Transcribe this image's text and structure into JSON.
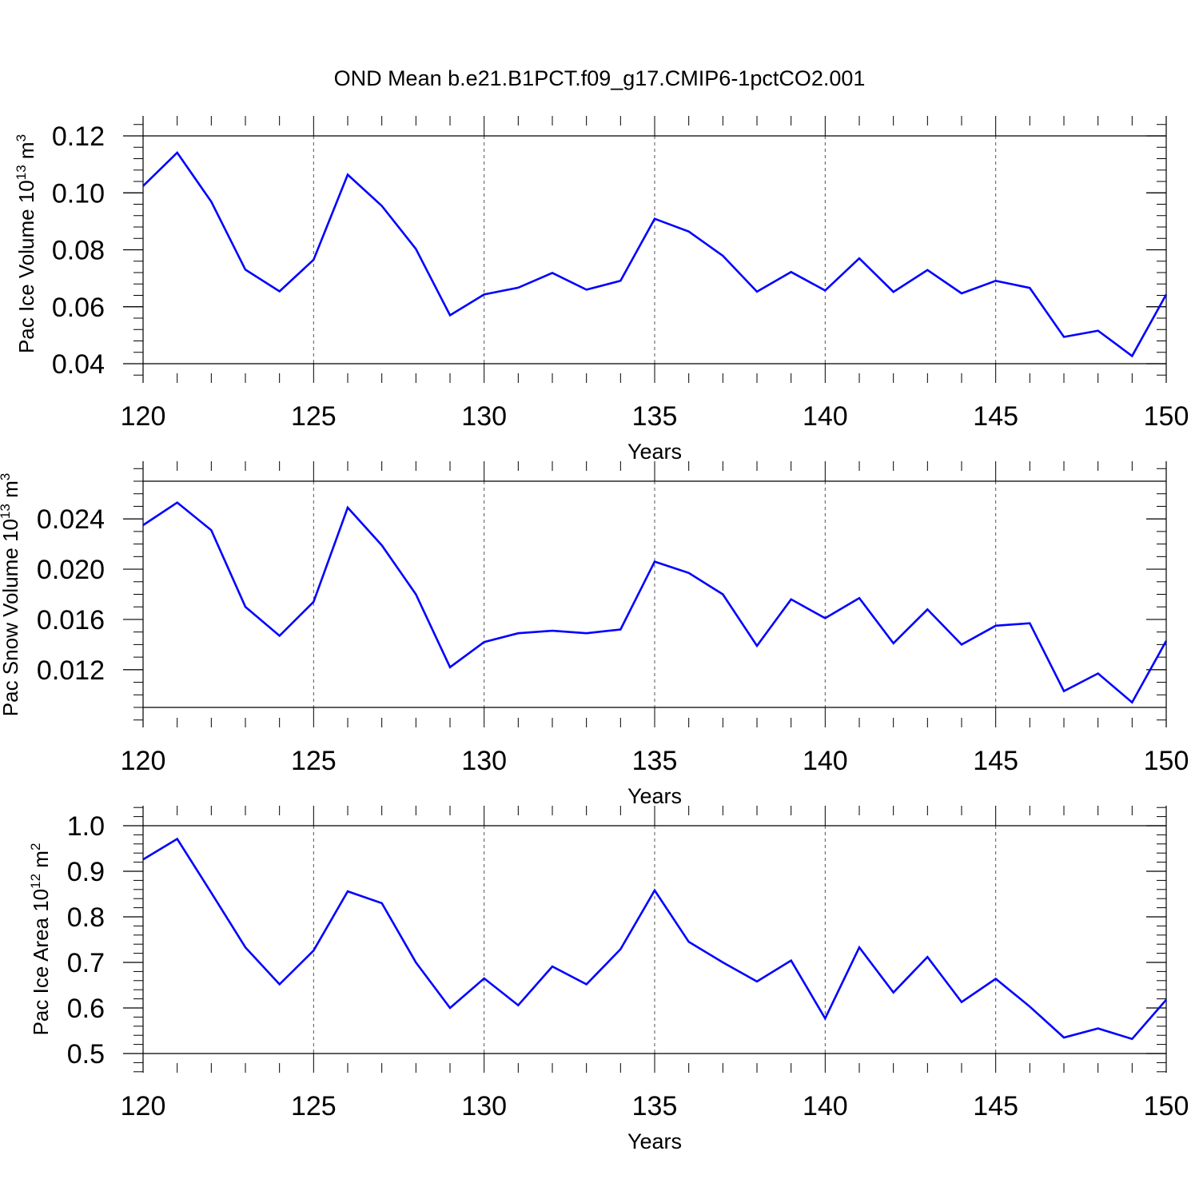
{
  "figure": {
    "title": "OND Mean b.e21.B1PCT.f09_g17.CMIP6-1pctCO2.001"
  },
  "chart_data": [
    {
      "type": "line",
      "title": "OND Mean b.e21.B1PCT.f09_g17.CMIP6-1pctCO2.001",
      "xlabel": "Years",
      "ylabel": {
        "base": "Pac Ice Volume 10",
        "exp": "13",
        "unit": " m",
        "unit_exp": "3"
      },
      "xlim": [
        120,
        150
      ],
      "ylim": [
        0.04,
        0.12
      ],
      "xticks": [
        120,
        125,
        130,
        135,
        140,
        145,
        150
      ],
      "xtick_labels": [
        "120",
        "125",
        "130",
        "135",
        "140",
        "145",
        "150"
      ],
      "yticks": [
        0.04,
        0.06,
        0.08,
        0.1,
        0.12
      ],
      "ytick_labels": [
        "0.04",
        "0.06",
        "0.08",
        "0.10",
        "0.12"
      ],
      "y_minor_step": 0.004,
      "grid": "vertical dashed at major x ticks",
      "color": "#0000ff",
      "x": [
        120,
        121,
        122,
        123,
        124,
        125,
        126,
        127,
        128,
        129,
        130,
        131,
        132,
        133,
        134,
        135,
        136,
        137,
        138,
        139,
        140,
        141,
        142,
        143,
        144,
        145,
        146,
        147,
        148,
        149,
        150
      ],
      "y": [
        0.1024,
        0.1141,
        0.0969,
        0.073,
        0.0654,
        0.0765,
        0.1064,
        0.0954,
        0.0803,
        0.057,
        0.0643,
        0.0667,
        0.0719,
        0.066,
        0.0691,
        0.0909,
        0.0864,
        0.0779,
        0.0653,
        0.0722,
        0.0657,
        0.077,
        0.0652,
        0.0729,
        0.0647,
        0.0691,
        0.0666,
        0.0494,
        0.0516,
        0.0427,
        0.0643
      ]
    },
    {
      "type": "line",
      "xlabel": "Years",
      "ylabel": {
        "base": "Pac Snow Volume 10",
        "exp": "13",
        "unit": " m",
        "unit_exp": "3"
      },
      "xlim": [
        120,
        150
      ],
      "ylim": [
        0.009,
        0.027
      ],
      "xticks": [
        120,
        125,
        130,
        135,
        140,
        145,
        150
      ],
      "xtick_labels": [
        "120",
        "125",
        "130",
        "135",
        "140",
        "145",
        "150"
      ],
      "yticks": [
        0.012,
        0.016,
        0.02,
        0.024
      ],
      "ytick_labels": [
        "0.012",
        "0.016",
        "0.020",
        "0.024"
      ],
      "y_minor_step": 0.001,
      "grid": "vertical dashed at major x ticks",
      "color": "#0000ff",
      "x": [
        120,
        121,
        122,
        123,
        124,
        125,
        126,
        127,
        128,
        129,
        130,
        131,
        132,
        133,
        134,
        135,
        136,
        137,
        138,
        139,
        140,
        141,
        142,
        143,
        144,
        145,
        146,
        147,
        148,
        149,
        150
      ],
      "y": [
        0.0235,
        0.0253,
        0.0231,
        0.017,
        0.0147,
        0.0174,
        0.0249,
        0.0219,
        0.018,
        0.0122,
        0.0142,
        0.0149,
        0.0151,
        0.0149,
        0.0152,
        0.0206,
        0.0197,
        0.018,
        0.0139,
        0.0176,
        0.0161,
        0.0177,
        0.0141,
        0.0168,
        0.014,
        0.0155,
        0.0157,
        0.0103,
        0.0117,
        0.0094,
        0.0143
      ]
    },
    {
      "type": "line",
      "xlabel": "Years",
      "ylabel": {
        "base": "Pac Ice Area 10",
        "exp": "12",
        "unit": " m",
        "unit_exp": "2"
      },
      "xlim": [
        120,
        150
      ],
      "ylim": [
        0.5,
        1.0
      ],
      "xticks": [
        120,
        125,
        130,
        135,
        140,
        145,
        150
      ],
      "xtick_labels": [
        "120",
        "125",
        "130",
        "135",
        "140",
        "145",
        "150"
      ],
      "yticks": [
        0.5,
        0.6,
        0.7,
        0.8,
        0.9,
        1.0
      ],
      "ytick_labels": [
        "0.5",
        "0.6",
        "0.7",
        "0.8",
        "0.9",
        "1.0"
      ],
      "y_minor_step": 0.02,
      "grid": "vertical dashed at major x ticks",
      "color": "#0000ff",
      "x": [
        120,
        121,
        122,
        123,
        124,
        125,
        126,
        127,
        128,
        129,
        130,
        131,
        132,
        133,
        134,
        135,
        136,
        137,
        138,
        139,
        140,
        141,
        142,
        143,
        144,
        145,
        146,
        147,
        148,
        149,
        150
      ],
      "y": [
        0.926,
        0.971,
        0.853,
        0.733,
        0.652,
        0.726,
        0.856,
        0.83,
        0.7,
        0.6,
        0.665,
        0.606,
        0.691,
        0.652,
        0.729,
        0.858,
        0.745,
        0.7,
        0.658,
        0.704,
        0.577,
        0.733,
        0.634,
        0.712,
        0.613,
        0.664,
        0.603,
        0.535,
        0.555,
        0.532,
        0.618
      ]
    }
  ]
}
